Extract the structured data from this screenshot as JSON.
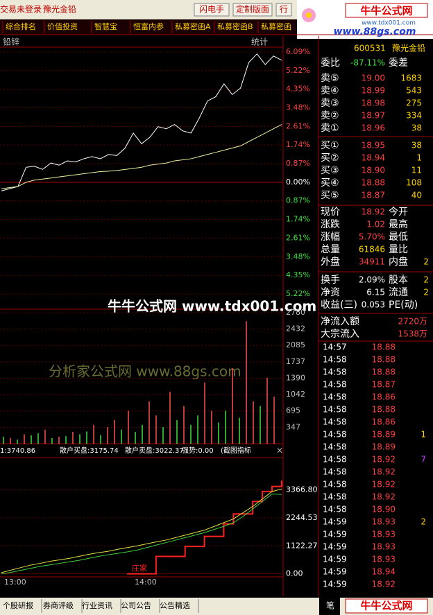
{
  "toolbar": {
    "status": "交易未登录",
    "stock": "豫光金铅",
    "buttons": [
      "闪电手",
      "定制版面",
      "行"
    ]
  },
  "logo": {
    "title": "牛牛公式网",
    "url": "www.tdx001.com",
    "site": "www.88gs.com"
  },
  "menu": [
    "综合排名",
    "价值投资",
    "智慧宝",
    "恒富内参",
    "私募密函A",
    "私募密函B",
    "私募密函"
  ],
  "chart_data": [
    {
      "type": "line",
      "title": "铅锌",
      "stat_label": "统计",
      "watermark": "牛牛公式网 www.tdx001.com",
      "ylim": [
        -5.48,
        6.25
      ],
      "yticks": [
        {
          "value": 6.09,
          "label": "6.09%"
        },
        {
          "value": 5.22,
          "label": "5.22%"
        },
        {
          "value": 4.35,
          "label": "4.35%"
        },
        {
          "value": 3.48,
          "label": "3.48%"
        },
        {
          "value": 2.61,
          "label": "2.61%"
        },
        {
          "value": 1.74,
          "label": "1.74%"
        },
        {
          "value": 0.87,
          "label": "0.87%"
        },
        {
          "value": 0,
          "label": "0.00%"
        },
        {
          "value": -0.87,
          "label": "0.87%"
        },
        {
          "value": -1.74,
          "label": "1.74%"
        },
        {
          "value": -2.61,
          "label": "2.61%"
        },
        {
          "value": -3.48,
          "label": "3.48%"
        },
        {
          "value": -4.35,
          "label": "4.35%"
        },
        {
          "value": -5.22,
          "label": "5.22%"
        }
      ],
      "series": [
        {
          "color": "#ffffff",
          "values": [
            -0.4,
            -0.3,
            -0.2,
            0.7,
            0.75,
            0.6,
            0.9,
            0.8,
            1.0,
            0.95,
            1.1,
            1.2,
            1.1,
            1.3,
            1.25,
            1.6,
            2.3,
            1.8,
            2.1,
            2.6,
            2.5,
            2.7,
            2.4,
            2.3,
            3.0,
            3.8,
            4.0,
            4.6,
            4.1,
            4.4,
            5.6,
            6.0,
            5.5,
            5.9,
            5.7
          ]
        },
        {
          "color": "#f0f0a0",
          "values": [
            -0.3,
            -0.25,
            -0.2,
            0.0,
            0.1,
            0.15,
            0.2,
            0.25,
            0.3,
            0.35,
            0.4,
            0.45,
            0.5,
            0.52,
            0.55,
            0.6,
            0.65,
            0.7,
            0.8,
            0.85,
            0.9,
            1.0,
            1.05,
            1.1,
            1.2,
            1.3,
            1.4,
            1.5,
            1.6,
            1.7,
            1.9,
            2.1,
            2.3,
            2.5,
            2.7
          ]
        }
      ]
    },
    {
      "type": "bar",
      "watermark": "分析家公式网 www.88gs.com",
      "ylim": [
        0,
        2853
      ],
      "yticks": [
        2780,
        2432,
        2085,
        1737,
        1390,
        1042,
        695,
        347
      ],
      "series": [
        {
          "color": "#ff5050",
          "values": [
            null,
            120,
            null,
            200,
            null,
            null,
            300,
            null,
            150,
            null,
            250,
            null,
            null,
            400,
            null,
            350,
            500,
            null,
            700,
            null,
            null,
            900,
            600,
            null,
            1100,
            null,
            800,
            null,
            null,
            1300,
            700,
            null,
            null,
            1600,
            null,
            2600,
            900,
            null,
            1400,
            1000
          ]
        },
        {
          "color": "#40e040",
          "values": [
            150,
            null,
            90,
            null,
            180,
            220,
            null,
            120,
            null,
            160,
            null,
            200,
            260,
            null,
            180,
            null,
            null,
            300,
            null,
            250,
            400,
            null,
            null,
            350,
            null,
            500,
            null,
            400,
            600,
            null,
            null,
            450,
            700,
            null,
            550,
            null,
            null,
            800,
            null,
            null
          ]
        }
      ]
    },
    {
      "type": "line",
      "legend": [
        "1:3740.86",
        "散户买盘:3175.74",
        "散户卖盘:3022.37",
        "强势:0.00",
        "(截图指标"
      ],
      "close": "×",
      "ylim": [
        -120,
        4657
      ],
      "yticks": [
        {
          "value": 3366.8,
          "label": "3366.80"
        },
        2244.53,
        1122.27,
        {
          "value": 0,
          "label": "0.00"
        }
      ],
      "series": [
        {
          "name": "庄家",
          "color": "#ff2020",
          "values": [
            null,
            null,
            null,
            null,
            null,
            null,
            null,
            null,
            null,
            null,
            null,
            null,
            null,
            0,
            0,
            0,
            700,
            700,
            700,
            1100,
            1100,
            1500,
            1500,
            2000,
            2400,
            2400,
            2900,
            3300,
            3500,
            3740.86
          ]
        },
        {
          "color": "#e0e040",
          "values": [
            50,
            150,
            250,
            350,
            420,
            500,
            560,
            620,
            700,
            780,
            850,
            900,
            980,
            1050,
            1120,
            1200,
            1280,
            1350,
            1450,
            1550,
            1650,
            1750,
            1900,
            2050,
            2200,
            2450,
            2700,
            3000,
            3300,
            3400
          ]
        },
        {
          "color": "#40d040",
          "values": [
            0,
            60,
            140,
            220,
            300,
            360,
            420,
            480,
            540,
            620,
            700,
            760,
            820,
            880,
            950,
            1050,
            1150,
            1250,
            1350,
            1450,
            1550,
            1650,
            1780,
            1900,
            2050,
            2300,
            2600,
            2900,
            3200,
            3180
          ]
        }
      ],
      "time_labels": [
        "13:00",
        "14:00"
      ]
    }
  ],
  "quote": {
    "code": "600531",
    "name": "豫光金铅",
    "ratio_label": "委比",
    "ratio": "-87.11%",
    "diff_label": "委差",
    "sells": [
      [
        "卖⑤",
        "19.00",
        "1683"
      ],
      [
        "卖④",
        "18.99",
        "543"
      ],
      [
        "卖③",
        "18.98",
        "275"
      ],
      [
        "卖②",
        "18.97",
        "334"
      ],
      [
        "卖①",
        "18.96",
        "38"
      ]
    ],
    "buys": [
      [
        "买①",
        "18.95",
        "38"
      ],
      [
        "买②",
        "18.94",
        "1"
      ],
      [
        "买③",
        "18.90",
        "11"
      ],
      [
        "买④",
        "18.88",
        "108"
      ],
      [
        "买⑤",
        "18.87",
        "40"
      ]
    ],
    "stats": [
      [
        "现价",
        "18.92",
        "今开"
      ],
      [
        "涨跌",
        "1.02",
        "最高"
      ],
      [
        "涨幅",
        "5.70%",
        "最低"
      ],
      [
        "总量",
        "61846",
        "量比"
      ],
      [
        "外盘",
        "34911",
        "内盘",
        "2"
      ]
    ],
    "finance": [
      [
        "换手",
        "2.09%",
        "股本",
        "2"
      ],
      [
        "净资",
        "6.15",
        "流通",
        "2"
      ],
      [
        "收益(三)",
        "0.053",
        "PE(动)"
      ]
    ],
    "flow": [
      [
        "净流入额",
        "2720万"
      ],
      [
        "大宗流入",
        "1538万"
      ]
    ],
    "ticks": [
      [
        "14:57",
        "18.88"
      ],
      [
        "14:58",
        "18.88"
      ],
      [
        "14:58",
        "18.88"
      ],
      [
        "14:58",
        "18.87"
      ],
      [
        "14:58",
        "18.86"
      ],
      [
        "14:58",
        "18.88"
      ],
      [
        "14:58",
        "18.86"
      ],
      [
        "14:58",
        "18.89",
        "1"
      ],
      [
        "14:58",
        "18.89"
      ],
      [
        "14:58",
        "18.92",
        "7"
      ],
      [
        "14:58",
        "18.92"
      ],
      [
        "14:58",
        "18.92"
      ],
      [
        "14:58",
        "18.92"
      ],
      [
        "14:58",
        "18.90"
      ],
      [
        "14:59",
        "18.93",
        "2"
      ],
      [
        "14:59",
        "18.93"
      ],
      [
        "14:59",
        "18.93"
      ],
      [
        "14:59",
        "18.93"
      ],
      [
        "14:59",
        "18.94"
      ],
      [
        "14:59",
        "18.92"
      ]
    ],
    "tab": "笔"
  },
  "tabs": [
    "个股研报",
    "券商评级",
    "行业资讯",
    "公司公告",
    "公告精选"
  ]
}
